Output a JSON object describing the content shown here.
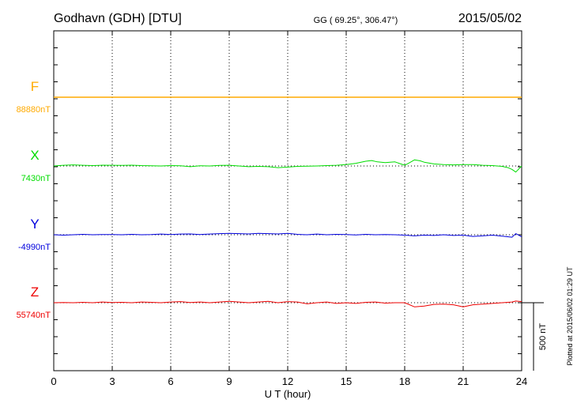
{
  "header": {
    "station": "Godhavn (GDH)  [DTU]",
    "coords": "GG ( 69.25°, 306.47°)",
    "date": "2015/05/02"
  },
  "footer": {
    "plotted_note": "Plotted at 2015/06/02 01:29 UT"
  },
  "colors": {
    "F": "#ffaa00",
    "X": "#00dd00",
    "Y": "#0000dd",
    "Z": "#ee0000",
    "grid": "#000000"
  },
  "chart_data": {
    "type": "line",
    "xlabel": "U T (hour)",
    "xlim": [
      0,
      24
    ],
    "xticks": [
      "0",
      "3",
      "6",
      "9",
      "12",
      "15",
      "18",
      "21",
      "24"
    ],
    "scale_bar": "500 nT",
    "series": [
      {
        "name": "F",
        "baseline": "88880nT",
        "x": [
          0,
          24
        ],
        "y": [
          0,
          0
        ]
      },
      {
        "name": "X",
        "baseline": "7430nT",
        "x": [
          0,
          0.5,
          1,
          1.5,
          2,
          2.5,
          3,
          3.5,
          4,
          4.5,
          5,
          5.5,
          6,
          6.5,
          7,
          7.5,
          8,
          8.5,
          9,
          9.5,
          10,
          10.5,
          11,
          11.5,
          12,
          12.5,
          13,
          13.5,
          14,
          14.5,
          15,
          15.5,
          16,
          16.3,
          16.6,
          17,
          17.5,
          18,
          18.2,
          18.5,
          18.8,
          19,
          19.5,
          20,
          20.5,
          21,
          21.5,
          22,
          22.5,
          23,
          23.3,
          23.5,
          23.7,
          24
        ],
        "y": [
          0,
          5,
          8,
          5,
          3,
          6,
          5,
          4,
          6,
          3,
          2,
          0,
          3,
          1,
          -5,
          2,
          0,
          4,
          5,
          0,
          -5,
          -3,
          -5,
          -12,
          -8,
          -3,
          -2,
          0,
          3,
          5,
          10,
          20,
          35,
          40,
          30,
          25,
          30,
          5,
          20,
          45,
          38,
          28,
          15,
          10,
          8,
          10,
          10,
          5,
          3,
          -3,
          -12,
          -25,
          -45,
          0
        ]
      },
      {
        "name": "Y",
        "baseline": "-4990nT",
        "x": [
          0,
          0.5,
          1,
          1.5,
          2,
          2.5,
          3,
          3.5,
          4,
          4.5,
          5,
          5.5,
          6,
          6.5,
          7,
          7.5,
          8,
          8.5,
          9,
          9.5,
          10,
          10.5,
          11,
          11.5,
          12,
          12.5,
          13,
          13.5,
          14,
          14.5,
          15,
          15.5,
          16,
          16.5,
          17,
          17.5,
          18,
          18.5,
          19,
          19.5,
          20,
          20.5,
          21,
          21.5,
          22,
          22.5,
          23,
          23.5,
          23.7,
          24
        ],
        "y": [
          0,
          -3,
          0,
          3,
          0,
          2,
          2,
          0,
          3,
          0,
          2,
          5,
          2,
          5,
          6,
          2,
          5,
          8,
          10,
          8,
          6,
          10,
          8,
          6,
          10,
          3,
          0,
          5,
          0,
          3,
          2,
          -2,
          3,
          0,
          2,
          0,
          -3,
          -8,
          -3,
          -5,
          0,
          -5,
          -3,
          -12,
          -8,
          -3,
          -10,
          -18,
          8,
          -15
        ]
      },
      {
        "name": "Z",
        "baseline": "55740nT",
        "x": [
          0,
          0.5,
          1,
          1.5,
          2,
          2.5,
          3,
          3.5,
          4,
          4.5,
          5,
          5.5,
          6,
          6.5,
          7,
          7.5,
          8,
          8.5,
          9,
          9.5,
          10,
          10.5,
          11,
          11.5,
          12,
          12.5,
          13,
          13.5,
          14,
          14.5,
          15,
          15.5,
          16,
          16.5,
          17,
          17.5,
          18,
          18.5,
          19,
          19.5,
          20,
          20.5,
          21,
          21.5,
          22,
          22.5,
          23,
          23.5,
          23.7,
          24
        ],
        "y": [
          0,
          2,
          0,
          3,
          0,
          5,
          2,
          3,
          0,
          5,
          3,
          0,
          5,
          8,
          2,
          5,
          0,
          5,
          10,
          5,
          0,
          5,
          10,
          0,
          8,
          5,
          -8,
          0,
          5,
          -5,
          0,
          -5,
          3,
          5,
          -3,
          0,
          0,
          -30,
          -25,
          -12,
          -10,
          -15,
          -30,
          -15,
          -10,
          -5,
          0,
          5,
          12,
          8
        ]
      }
    ]
  }
}
